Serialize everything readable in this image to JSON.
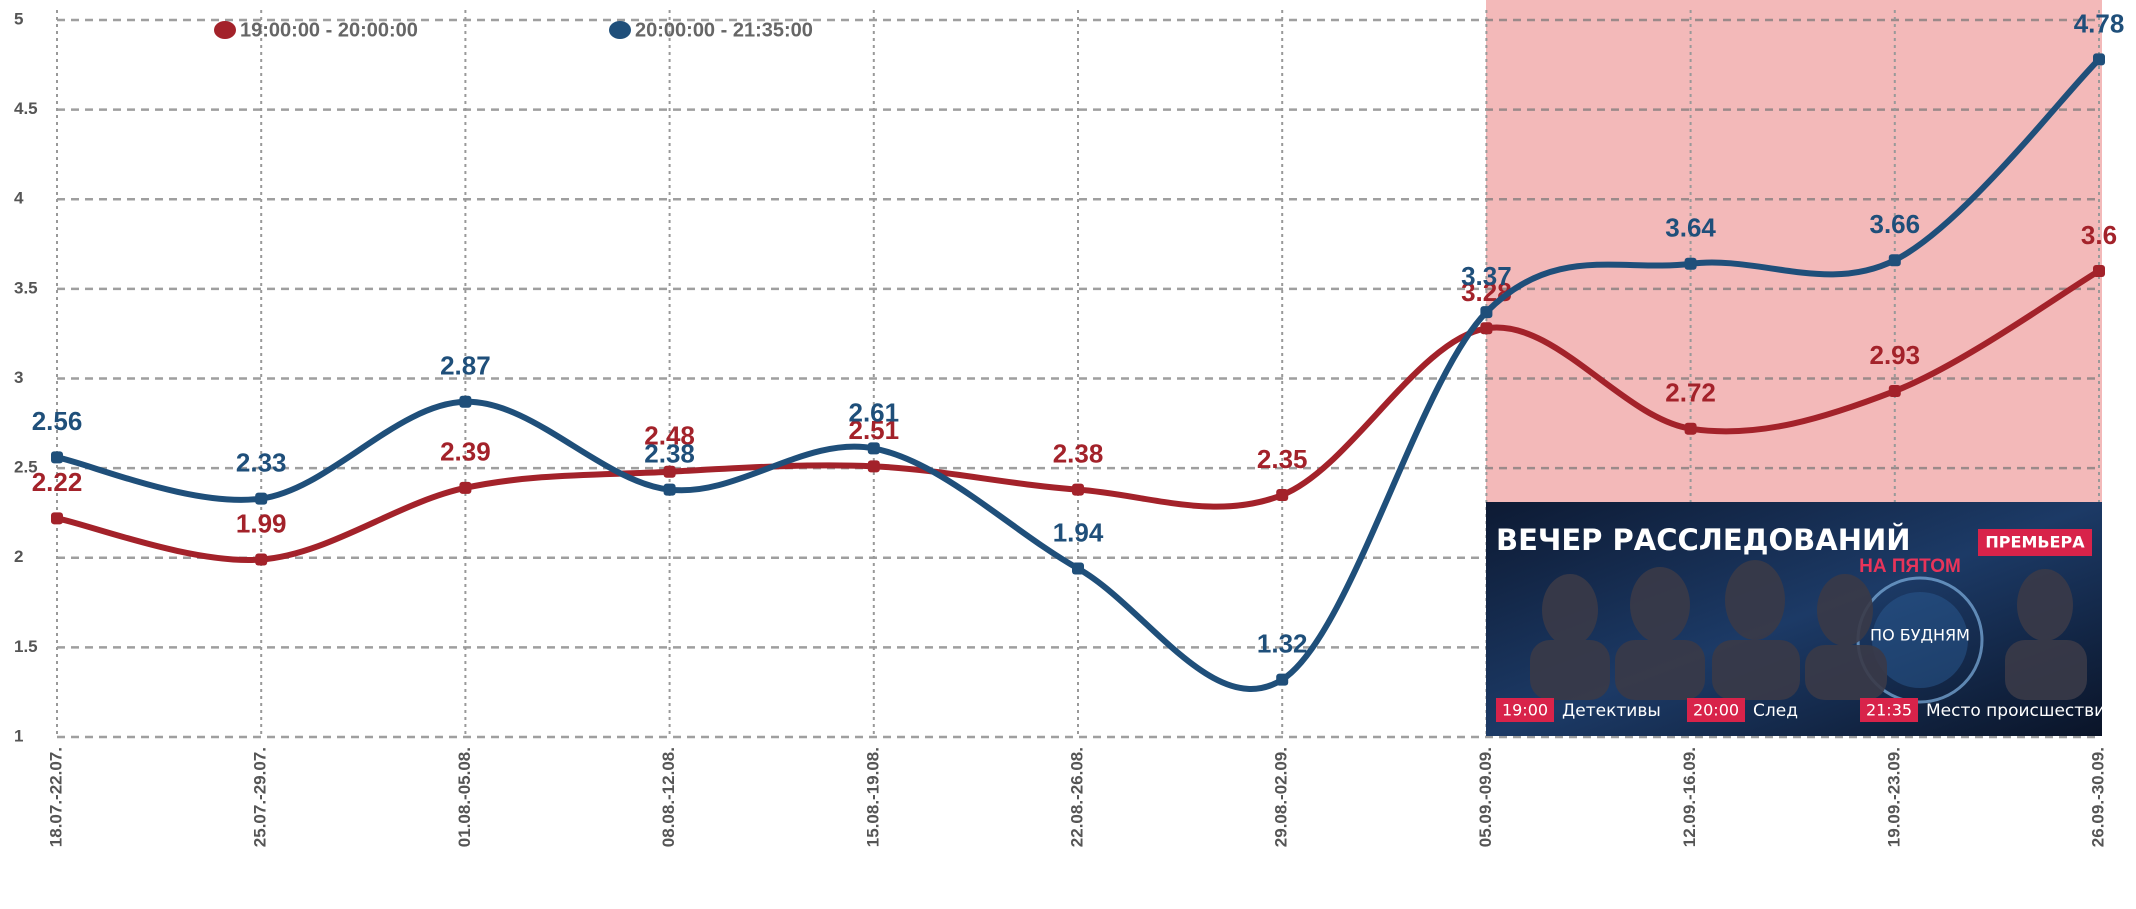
{
  "chart_data": {
    "type": "line",
    "categories": [
      "18.07.-22.07.",
      "25.07.-29.07.",
      "01.08.-05.08.",
      "08.08.-12.08.",
      "15.08.-19.08.",
      "22.08.-26.08.",
      "29.08.-02.09.",
      "05.09.-09.09.",
      "12.09.-16.09.",
      "19.09.-23.09.",
      "26.09.-30.09."
    ],
    "series": [
      {
        "name": "19:00:00 - 20:00:00",
        "color": "#a3222a",
        "values": [
          2.22,
          1.99,
          2.39,
          2.48,
          2.51,
          2.38,
          2.35,
          3.28,
          2.72,
          2.93,
          3.6
        ]
      },
      {
        "name": "20:00:00 - 21:35:00",
        "color": "#1f4f7a",
        "values": [
          2.56,
          2.33,
          2.87,
          2.38,
          2.61,
          1.94,
          1.32,
          3.37,
          3.64,
          3.66,
          4.78
        ]
      }
    ],
    "ylim": [
      1,
      5
    ],
    "yticks": [
      1,
      1.5,
      2,
      2.5,
      3,
      3.5,
      4,
      4.5,
      5
    ],
    "grid": true,
    "banner": {
      "title": "ВЕЧЕР РАССЛЕДОВАНИЙ",
      "badge": "ПРЕМЬЕРА",
      "subtitle": "НА ПЯТОМ",
      "tag": "ПО БУДНЯМ",
      "schedule": [
        {
          "time": "19:00",
          "show": "Детективы"
        },
        {
          "time": "20:00",
          "show": "След"
        },
        {
          "time": "21:35",
          "show": "Место происшествия"
        }
      ]
    }
  }
}
